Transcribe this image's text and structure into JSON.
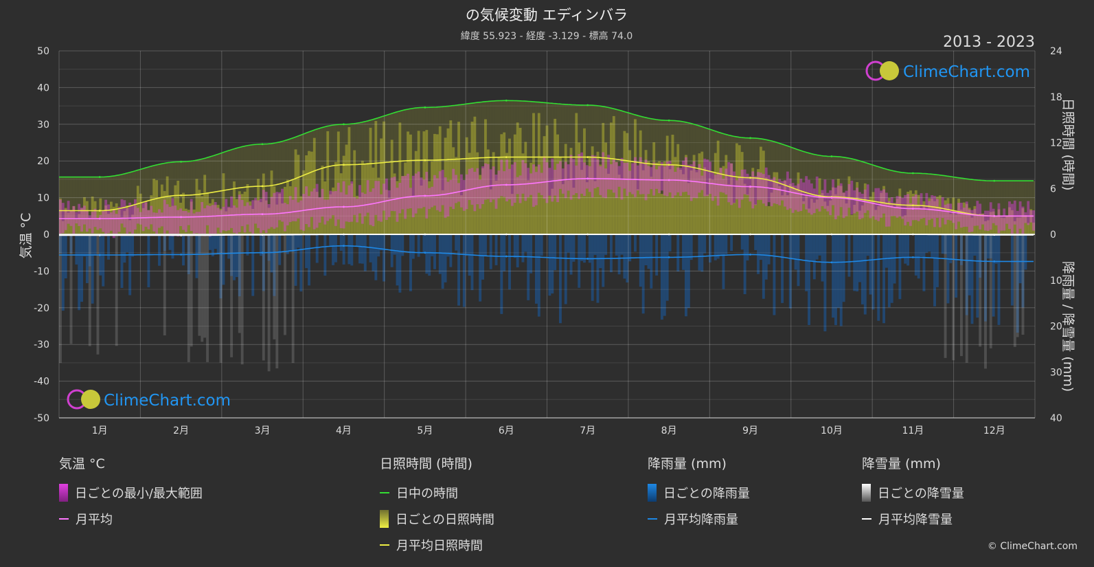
{
  "chart_data": {
    "type": "area",
    "title": "の気候変動 エディンバラ",
    "subtitle": "緯度 55.923 - 経度 -3.129 - 標高 74.0",
    "period": "2013 - 2023",
    "watermark": "ClimeChart.com",
    "copyright": "© ClimeChart.com",
    "y_left_label": "気温 °C",
    "y_right_top_label": "日照時間 (時間)",
    "y_right_bottom_label": "降雨量 / 降雪量 (mm)",
    "y_left_range": [
      -50,
      50
    ],
    "y_left_ticks": [
      "50",
      "40",
      "30",
      "20",
      "10",
      "0",
      "-10",
      "-20",
      "-30",
      "-40",
      "-50"
    ],
    "y_right_top_range": [
      0,
      24
    ],
    "y_right_top_ticks": [
      "24",
      "18",
      "12",
      "6",
      "0"
    ],
    "y_right_bottom_range": [
      0,
      40
    ],
    "y_right_bottom_ticks": [
      "10",
      "20",
      "30",
      "40"
    ],
    "months": [
      "1月",
      "2月",
      "3月",
      "4月",
      "5月",
      "6月",
      "7月",
      "8月",
      "9月",
      "10月",
      "11月",
      "12月"
    ],
    "series": [
      {
        "name": "日中の時間",
        "axis": "sun",
        "color": "#33dd33",
        "values": [
          7.5,
          9.5,
          11.8,
          14.4,
          16.6,
          17.5,
          16.9,
          14.9,
          12.6,
          10.2,
          8.0,
          7.0
        ]
      },
      {
        "name": "月平均日照時間",
        "axis": "sun",
        "color": "#eeee44",
        "values": [
          3.1,
          5.1,
          6.3,
          9.1,
          9.7,
          10.1,
          10.1,
          9.1,
          7.4,
          4.9,
          3.8,
          2.4
        ]
      },
      {
        "name": "月平均",
        "axis": "temp",
        "color": "#ff77ff",
        "values": [
          4.3,
          4.7,
          5.5,
          7.5,
          10.5,
          13.5,
          15.2,
          14.8,
          13.0,
          10.0,
          7.0,
          5.0
        ]
      },
      {
        "name": "月平均降雨量",
        "axis": "precip",
        "color": "#1e88e5",
        "values": [
          4.5,
          4.4,
          4.0,
          2.5,
          4.0,
          4.8,
          5.3,
          5.0,
          4.4,
          6.1,
          5.0,
          5.9
        ]
      },
      {
        "name": "月平均降雪量",
        "axis": "precip",
        "color": "#ffffff",
        "values": [
          0.2,
          0.2,
          0.1,
          0,
          0,
          0,
          0,
          0,
          0,
          0,
          0,
          0.1
        ]
      }
    ],
    "daily_temp_range": {
      "min": [
        1,
        1,
        2,
        3.5,
        6,
        9,
        11,
        11,
        9,
        6,
        3,
        1.5
      ],
      "max": [
        7,
        8,
        10,
        12,
        15,
        18,
        20,
        19,
        17,
        13,
        9,
        7
      ]
    },
    "grid": true
  },
  "legend": {
    "temp": {
      "header": "気温 °C",
      "items": [
        "日ごとの最小/最大範囲",
        "月平均"
      ]
    },
    "sun": {
      "header": "日照時間 (時間)",
      "items": [
        "日中の時間",
        "日ごとの日照時間",
        "月平均日照時間"
      ]
    },
    "rain": {
      "header": "降雨量 (mm)",
      "items": [
        "日ごとの降雨量",
        "月平均降雨量"
      ]
    },
    "snow": {
      "header": "降雪量 (mm)",
      "items": [
        "日ごとの降雪量",
        "月平均降雪量"
      ]
    }
  },
  "colors": {
    "background": "#2e2e2e",
    "temp_range": "#e040e0",
    "sunshine_daily": "#a8a830",
    "rain_daily": "#1565c0",
    "snow_daily": "#bbbbbb",
    "brand": "#2196f3"
  }
}
